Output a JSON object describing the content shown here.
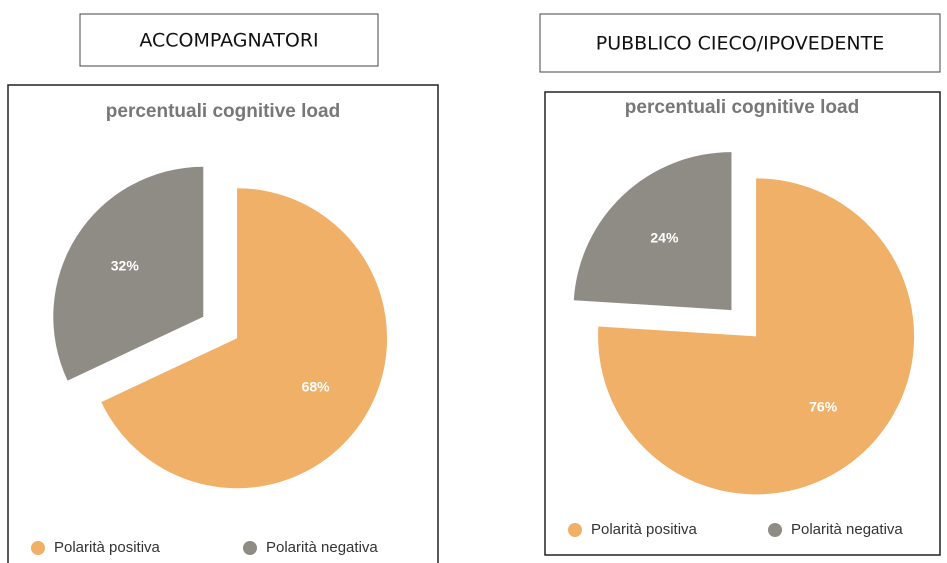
{
  "headers": [
    "ACCOMPAGNATORI",
    "PUBBLICO CIECO/IPOVEDENTE"
  ],
  "chart_data": [
    {
      "type": "pie",
      "title": "percentuali cognitive load",
      "categories": [
        "Polarità positiva",
        "Polarità negativa"
      ],
      "values": [
        68,
        32
      ],
      "value_labels": [
        "68%",
        "32%"
      ],
      "colors": [
        "#f0b068",
        "#8f8c86"
      ]
    },
    {
      "type": "pie",
      "title": "percentuali cognitive load",
      "categories": [
        "Polarità positiva",
        "Polarità negativa"
      ],
      "values": [
        76,
        24
      ],
      "value_labels": [
        "76%",
        "24%"
      ],
      "colors": [
        "#f0b068",
        "#8f8c86"
      ]
    }
  ]
}
